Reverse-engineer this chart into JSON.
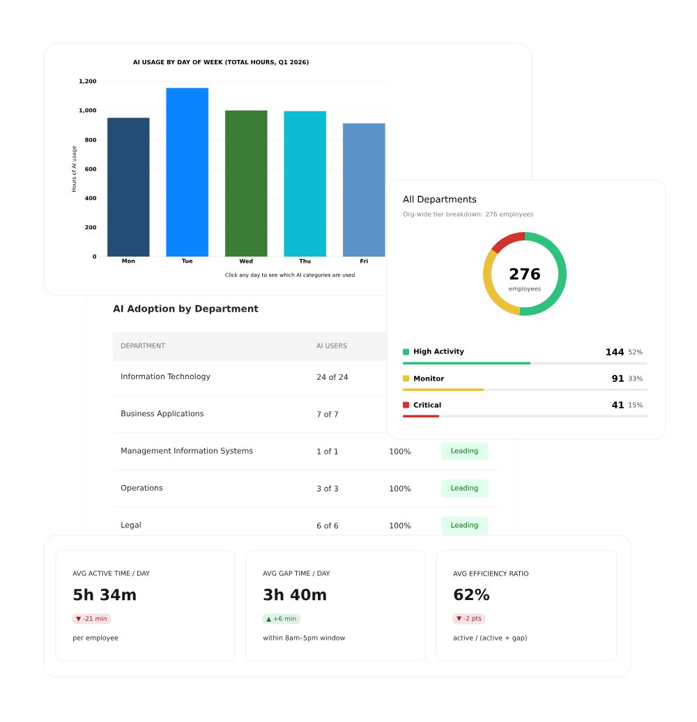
{
  "chart_data": [
    {
      "type": "bar",
      "title": "AI USAGE BY DAY OF WEEK (TOTAL HOURS, Q1 2026)",
      "ylabel": "Hours of AI usage",
      "xlabel": "Click any day to see which AI categories are used",
      "categories": [
        "Mon",
        "Tue",
        "Wed",
        "Thu",
        "Fri"
      ],
      "values": [
        950,
        1155,
        1000,
        995,
        912
      ],
      "colors": [
        "#244e78",
        "#0a84ff",
        "#3a7d36",
        "#0bbcd4",
        "#5b93c9"
      ],
      "ylim": [
        0,
        1200
      ],
      "yticks": [
        0,
        200,
        400,
        600,
        800,
        {
          "value": 1000,
          "label": "1,000"
        },
        {
          "value": 1200,
          "label": "1,200"
        }
      ],
      "grid": "y"
    },
    {
      "type": "donut",
      "title": "All Departments",
      "subtitle": "Org-wide tier breakdown: 276 employees",
      "categories": [
        "High Activity",
        "Monitor",
        "Critical"
      ],
      "values": [
        144,
        91,
        41
      ],
      "colors": [
        "#2ec27e",
        "#e9c13b",
        "#d0342c"
      ],
      "data_labels": true,
      "legend": "bottom",
      "annotations": [
        "276",
        "employees",
        "52%",
        "33%",
        "15%"
      ]
    },
    {
      "type": "other",
      "title": "AI Adoption by Department",
      "categories": [
        "Information Technology",
        "Business Applications",
        "Management Information Systems",
        "Operations",
        "Legal"
      ],
      "annotations": [
        "DEPARTMENT",
        "AI USERS",
        "24 of 24",
        "7 of 7",
        "1 of 1",
        "3 of 3",
        "6 of 6",
        "100%",
        "100%",
        "100%",
        "Leading",
        "Leading",
        "Leading"
      ]
    },
    {
      "type": "other",
      "colors": [
        "#a3212b",
        "#1e7a3e",
        "#a3212b"
      ],
      "annotations": [
        "AVG ACTIVE TIME / DAY",
        "5h 34m",
        "▼ -21 min",
        "per employee",
        "AVG GAP TIME / DAY",
        "3h 40m",
        "▲ +6 min",
        "within 8am–5pm window",
        "AVG EFFICIENCY RATIO",
        "62%",
        "▼ -2 pts",
        "active / (active + gap)"
      ]
    }
  ]
}
